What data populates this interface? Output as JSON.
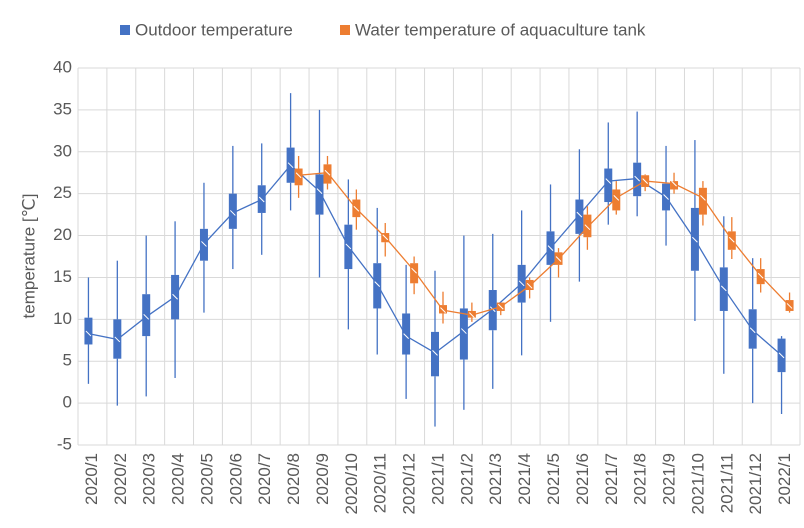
{
  "chart_data": {
    "type": "box",
    "y_label": "temperature [℃]",
    "categories": [
      "2020/1",
      "2020/2",
      "2020/3",
      "2020/4",
      "2020/5",
      "2020/6",
      "2020/7",
      "2020/8",
      "2020/9",
      "2020/10",
      "2020/11",
      "2020/12",
      "2021/1",
      "2021/2",
      "2021/3",
      "2021/4",
      "2021/5",
      "2021/6",
      "2021/7",
      "2021/8",
      "2021/9",
      "2021/10",
      "2021/11",
      "2021/12",
      "2022/1"
    ],
    "series": [
      {
        "name": "Outdoor temperature",
        "color": "#4472c4",
        "min": [
          2.3,
          -0.3,
          0.8,
          3,
          10.8,
          16,
          17.7,
          23,
          15,
          8.8,
          5.8,
          0.5,
          -2.8,
          -0.8,
          1.7,
          5.7,
          9.7,
          14.5,
          21.3,
          22.3,
          18.8,
          9.8,
          3.5,
          0,
          -1.3
        ],
        "q1": [
          7,
          5.3,
          8,
          10,
          17,
          20.8,
          22.7,
          26.3,
          22.5,
          16,
          11.3,
          5.8,
          3.2,
          5.2,
          8.7,
          12,
          16.5,
          20.2,
          24,
          24.7,
          23,
          15.8,
          11,
          6.5,
          3.7
        ],
        "q3": [
          10.2,
          10,
          13,
          15.3,
          20.8,
          25,
          26,
          30.5,
          27.3,
          21.3,
          16.7,
          10.7,
          8.5,
          11.3,
          13.5,
          16.5,
          20.5,
          24.3,
          28,
          28.7,
          26.2,
          23.3,
          16.2,
          11.2,
          7.7
        ],
        "max": [
          15,
          17,
          20,
          21.7,
          26.3,
          30.7,
          31,
          37,
          35,
          26.7,
          23.3,
          16.5,
          15.8,
          20,
          20.2,
          23,
          26.1,
          30.3,
          33.5,
          34.8,
          30.7,
          31.4,
          22.3,
          17.3,
          8
        ],
        "mean": [
          8.3,
          7.6,
          10.3,
          12.7,
          19,
          22.7,
          24.3,
          28.4,
          25.3,
          18.7,
          14.2,
          8,
          6,
          8.6,
          11.2,
          14.3,
          18.5,
          22.5,
          26.5,
          26.8,
          24.6,
          19.5,
          13.7,
          8.7,
          5.7
        ]
      },
      {
        "name": "Water temperature of aquaculture tank",
        "color": "#ed7d31",
        "min": [
          null,
          null,
          null,
          null,
          null,
          null,
          null,
          24.5,
          25.5,
          20.7,
          17.5,
          13,
          9.5,
          9.7,
          10.5,
          12.5,
          15,
          18.3,
          22.5,
          25.3,
          25,
          21.2,
          17.2,
          13.2,
          10.8
        ],
        "q1": [
          null,
          null,
          null,
          null,
          null,
          null,
          null,
          26,
          26.2,
          22.2,
          19.2,
          14.3,
          10.7,
          10.2,
          11,
          13.5,
          16.5,
          19.8,
          23,
          25.8,
          25.5,
          22.5,
          18.3,
          14.2,
          11
        ],
        "q3": [
          null,
          null,
          null,
          null,
          null,
          null,
          null,
          28,
          28.5,
          24.3,
          20.3,
          16.7,
          11.7,
          11,
          12,
          14.7,
          18,
          22.5,
          25.5,
          27.2,
          26.5,
          25.7,
          20.5,
          16,
          12.3
        ],
        "max": [
          null,
          null,
          null,
          null,
          null,
          null,
          null,
          29.5,
          29.5,
          25.5,
          21.5,
          17.5,
          13.3,
          12,
          12,
          15,
          18.5,
          23.5,
          26.5,
          27.3,
          27.5,
          26.5,
          22.2,
          17.3,
          13.2
        ],
        "mean": [
          null,
          null,
          null,
          null,
          null,
          null,
          null,
          27.2,
          27.5,
          23.2,
          19.8,
          15.8,
          11.1,
          10.5,
          11.5,
          14,
          17.2,
          21,
          24.5,
          26.5,
          26.2,
          24.5,
          19.5,
          15.2,
          11.6
        ]
      }
    ],
    "ylim": [
      -5,
      40
    ],
    "yticks": [
      -5,
      0,
      5,
      10,
      15,
      20,
      25,
      30,
      35,
      40
    ],
    "grid": true
  }
}
